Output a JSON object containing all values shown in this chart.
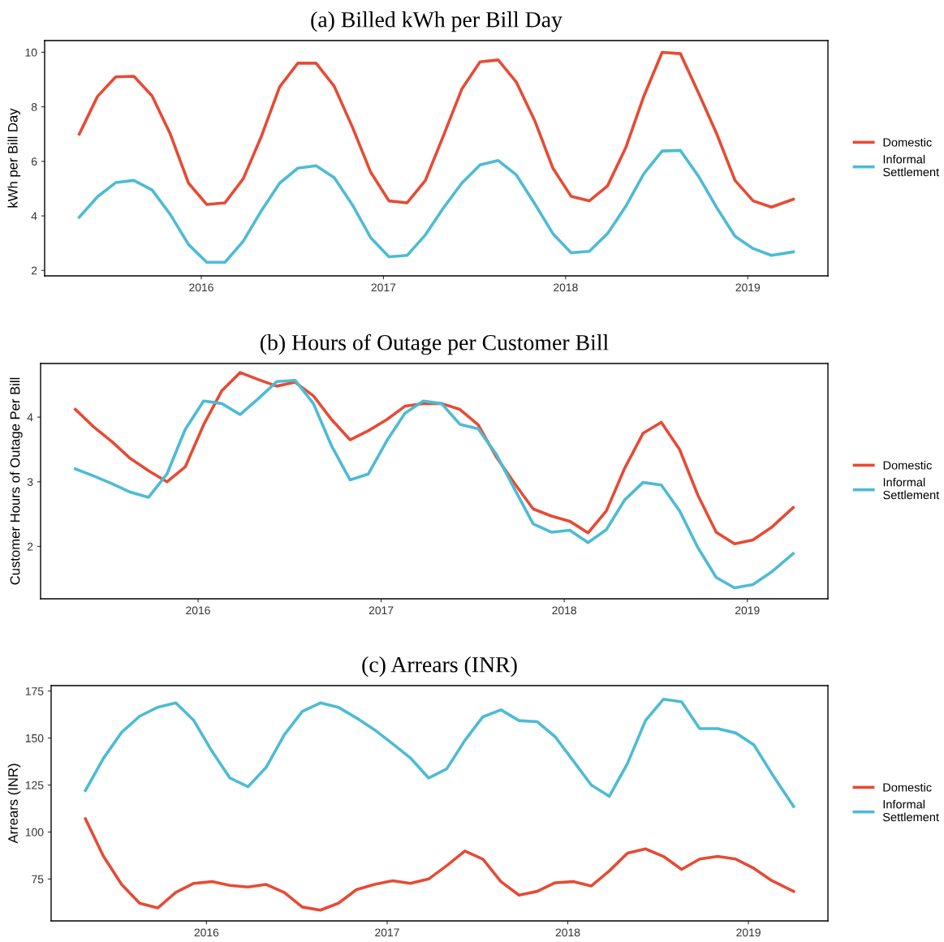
{
  "chart_data": [
    {
      "type": "line",
      "title": "(a) Billed kWh per Bill Day",
      "ylabel": "kWh per Bill Day",
      "x": [
        2015.33,
        2015.43,
        2015.53,
        2015.63,
        2015.73,
        2015.83,
        2015.93,
        2016.03,
        2016.13,
        2016.23,
        2016.33,
        2016.43,
        2016.53,
        2016.63,
        2016.73,
        2016.83,
        2016.93,
        2017.03,
        2017.13,
        2017.23,
        2017.33,
        2017.43,
        2017.53,
        2017.63,
        2017.73,
        2017.83,
        2017.93,
        2018.03,
        2018.13,
        2018.23,
        2018.33,
        2018.43,
        2018.53,
        2018.63,
        2018.73,
        2018.83,
        2018.93,
        2019.03,
        2019.13,
        2019.25
      ],
      "series": [
        {
          "name": "Domestic",
          "color": "#e64b35",
          "values": [
            7.0,
            8.38,
            9.1,
            9.12,
            8.4,
            7.0,
            5.2,
            4.42,
            4.48,
            5.36,
            6.92,
            8.73,
            9.6,
            9.6,
            8.75,
            7.25,
            5.6,
            4.55,
            4.48,
            5.3,
            6.95,
            8.65,
            9.65,
            9.72,
            8.9,
            7.5,
            5.75,
            4.72,
            4.55,
            5.1,
            6.5,
            8.4,
            10.0,
            9.95,
            8.5,
            7.0,
            5.3,
            4.55,
            4.32,
            4.61
          ]
        },
        {
          "name": "Informal\nSettlement",
          "color": "#4dbbd5",
          "values": [
            3.95,
            4.7,
            5.22,
            5.3,
            4.95,
            4.05,
            2.95,
            2.3,
            2.3,
            3.07,
            4.19,
            5.2,
            5.75,
            5.84,
            5.4,
            4.4,
            3.2,
            2.5,
            2.55,
            3.3,
            4.3,
            5.2,
            5.87,
            6.03,
            5.5,
            4.45,
            3.35,
            2.65,
            2.7,
            3.35,
            4.35,
            5.55,
            6.38,
            6.4,
            5.45,
            4.3,
            3.25,
            2.8,
            2.55,
            2.68
          ]
        }
      ],
      "xlim": [
        2015.14,
        2019.44
      ],
      "xticks": [
        2016,
        2017,
        2018,
        2019
      ],
      "ylim": [
        1.8,
        10.43
      ],
      "yticks": [
        2,
        4,
        6,
        8,
        10
      ],
      "grid": false,
      "legend": "right",
      "marker": "none",
      "line_style": "solid"
    },
    {
      "type": "line",
      "title": "(b) Hours of Outage per Customer Bill",
      "ylabel": "Customer Hours of Outage Per Bill",
      "x": [
        2015.33,
        2015.43,
        2015.53,
        2015.63,
        2015.73,
        2015.83,
        2015.93,
        2016.03,
        2016.13,
        2016.23,
        2016.33,
        2016.43,
        2016.53,
        2016.63,
        2016.73,
        2016.83,
        2016.93,
        2017.03,
        2017.13,
        2017.23,
        2017.33,
        2017.43,
        2017.53,
        2017.63,
        2017.73,
        2017.83,
        2017.93,
        2018.03,
        2018.13,
        2018.23,
        2018.33,
        2018.43,
        2018.53,
        2018.63,
        2018.73,
        2018.83,
        2018.93,
        2019.03,
        2019.13,
        2019.25
      ],
      "series": [
        {
          "name": "Domestic",
          "color": "#e64b35",
          "values": [
            4.12,
            3.85,
            3.62,
            3.36,
            3.17,
            3.0,
            3.23,
            3.88,
            4.41,
            4.69,
            4.58,
            4.48,
            4.54,
            4.33,
            3.96,
            3.65,
            3.79,
            3.96,
            4.17,
            4.21,
            4.21,
            4.12,
            3.88,
            3.38,
            2.97,
            2.58,
            2.47,
            2.39,
            2.21,
            2.55,
            3.21,
            3.75,
            3.92,
            3.5,
            2.79,
            2.22,
            2.04,
            2.1,
            2.29,
            2.6
          ]
        },
        {
          "name": "Informal\nSettlement",
          "color": "#4dbbd5",
          "values": [
            3.2,
            3.09,
            2.97,
            2.84,
            2.76,
            3.12,
            3.81,
            4.25,
            4.21,
            4.04,
            4.29,
            4.55,
            4.57,
            4.21,
            3.55,
            3.03,
            3.12,
            3.63,
            4.06,
            4.25,
            4.21,
            3.89,
            3.82,
            3.42,
            2.88,
            2.35,
            2.22,
            2.25,
            2.06,
            2.26,
            2.72,
            2.99,
            2.95,
            2.55,
            1.98,
            1.52,
            1.36,
            1.41,
            1.6,
            1.89
          ]
        }
      ],
      "xlim": [
        2015.14,
        2019.44
      ],
      "xticks": [
        2016,
        2017,
        2018,
        2019
      ],
      "ylim": [
        1.19,
        4.83
      ],
      "yticks": [
        2,
        3,
        4
      ],
      "grid": false,
      "legend": "right",
      "marker": "none",
      "line_style": "solid"
    },
    {
      "type": "line",
      "title": "(c) Arrears (INR)",
      "ylabel": "Arrears (INR)",
      "x": [
        2015.33,
        2015.43,
        2015.53,
        2015.63,
        2015.73,
        2015.83,
        2015.93,
        2016.03,
        2016.13,
        2016.23,
        2016.33,
        2016.43,
        2016.53,
        2016.63,
        2016.73,
        2016.83,
        2016.93,
        2017.03,
        2017.13,
        2017.23,
        2017.33,
        2017.43,
        2017.53,
        2017.63,
        2017.73,
        2017.83,
        2017.93,
        2018.03,
        2018.13,
        2018.23,
        2018.33,
        2018.43,
        2018.53,
        2018.63,
        2018.73,
        2018.83,
        2018.93,
        2019.03,
        2019.13,
        2019.25
      ],
      "series": [
        {
          "name": "Domestic",
          "color": "#e64b35",
          "values": [
            107,
            87,
            72.1,
            62.1,
            59.6,
            67.9,
            72.7,
            73.6,
            71.6,
            70.7,
            72.1,
            67.9,
            60.1,
            58.4,
            62.1,
            69.3,
            72.1,
            74.1,
            72.7,
            75,
            82.1,
            89.9,
            85.6,
            73.6,
            66.4,
            68.4,
            73,
            73.6,
            71.3,
            79.3,
            88.7,
            91,
            87,
            80.1,
            85.6,
            87,
            85.6,
            80.7,
            74.1,
            68.4
          ]
        },
        {
          "name": "Informal\nSettlement",
          "color": "#4dbbd5",
          "values": [
            122.1,
            139.3,
            153,
            161.6,
            166.4,
            168.7,
            159.3,
            143,
            128.7,
            124.1,
            134.4,
            151.6,
            164.1,
            168.7,
            166.4,
            160.7,
            154.4,
            147,
            139.3,
            128.7,
            133.6,
            148.7,
            161.3,
            165,
            159.3,
            158.7,
            150.7,
            137.9,
            125,
            119,
            136.4,
            159.3,
            170.7,
            169.3,
            155,
            155,
            152.7,
            146.4,
            131,
            113.6
          ]
        }
      ],
      "xlim": [
        2015.14,
        2019.44
      ],
      "xticks": [
        2016,
        2017,
        2018,
        2019
      ],
      "ylim": [
        52.7,
        177.9
      ],
      "yticks": [
        75,
        100,
        125,
        150,
        175
      ],
      "grid": false,
      "legend": "right",
      "marker": "none",
      "line_style": "solid"
    }
  ]
}
